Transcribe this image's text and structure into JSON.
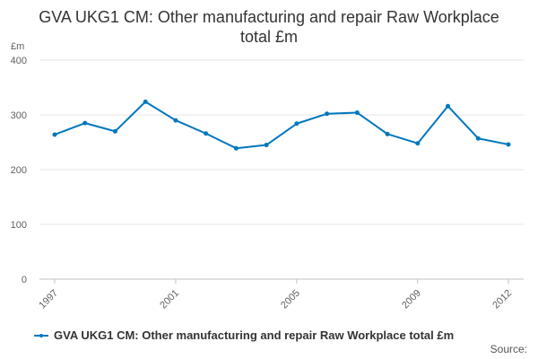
{
  "chart_data": {
    "type": "line",
    "title": "GVA UKG1 CM: Other manufacturing and repair Raw Workplace total £m",
    "unit_label": "£m",
    "xlabel": "",
    "ylabel": "",
    "x": [
      1997,
      1998,
      1999,
      2000,
      2001,
      2002,
      2003,
      2004,
      2005,
      2006,
      2007,
      2008,
      2009,
      2010,
      2011,
      2012
    ],
    "x_tick_labels": [
      "1997",
      "2001",
      "2005",
      "2009",
      "2012"
    ],
    "x_tick_values": [
      1997,
      2001,
      2005,
      2009,
      2012
    ],
    "y_ticks": [
      0,
      100,
      200,
      300,
      400
    ],
    "ylim": [
      0,
      400
    ],
    "grid": true,
    "legend_position": "bottom-left",
    "series": [
      {
        "name": "GVA UKG1 CM: Other manufacturing and repair Raw Workplace total £m",
        "color": "#0077bc",
        "values": [
          264,
          285,
          270,
          324,
          290,
          266,
          239,
          245,
          284,
          302,
          304,
          265,
          248,
          316,
          257,
          246
        ]
      }
    ],
    "source_label": "Source:"
  }
}
